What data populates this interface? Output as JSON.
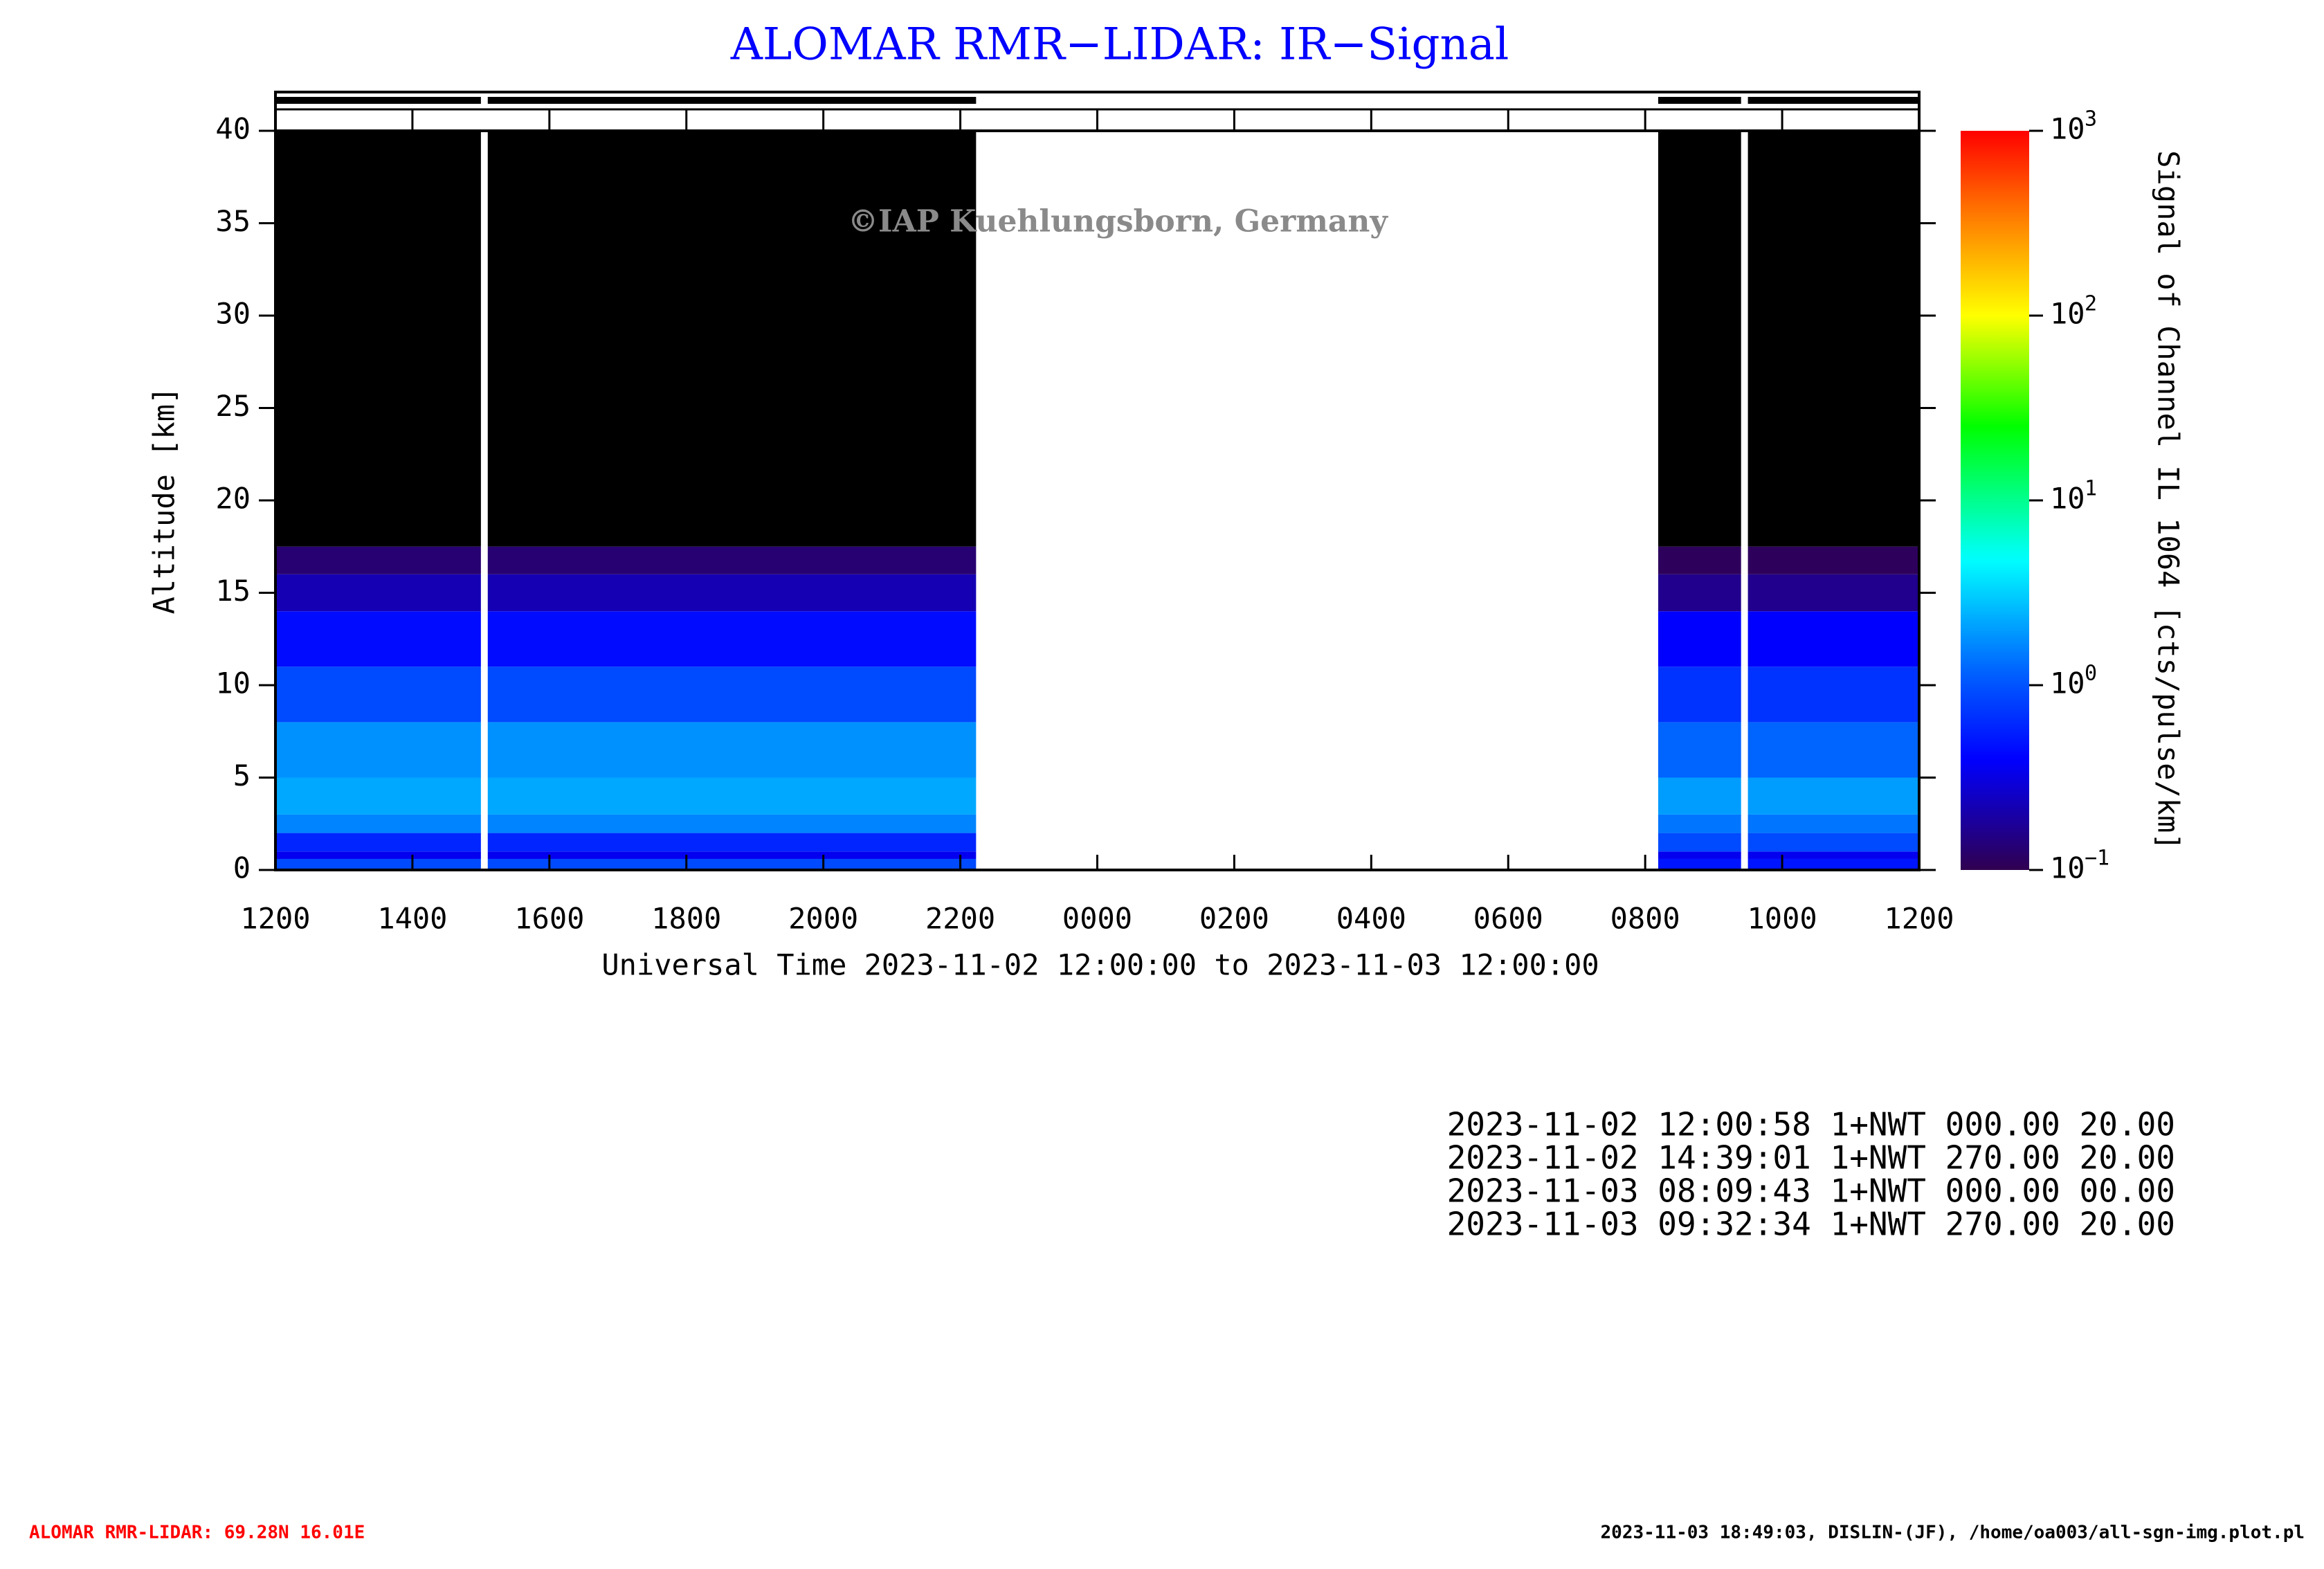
{
  "chart_data": {
    "type": "heatmap",
    "title": "ALOMAR RMR−LIDAR: IR−Signal",
    "watermark": "©IAP Kuehlungsborn, Germany",
    "x_label": "Universal Time 2023-11-02 12:00:00 to 2023-11-03 12:00:00",
    "y_label": "Altitude [km]",
    "colorbar_label": "Signal of Channel IL 1064 [cts/pulse/km]",
    "xlim": [
      12,
      36
    ],
    "xticks": [
      {
        "value": 12,
        "label": "1200"
      },
      {
        "value": 14,
        "label": "1400"
      },
      {
        "value": 16,
        "label": "1600"
      },
      {
        "value": 18,
        "label": "1800"
      },
      {
        "value": 20,
        "label": "2000"
      },
      {
        "value": 22,
        "label": "2200"
      },
      {
        "value": 24,
        "label": "0000"
      },
      {
        "value": 26,
        "label": "0200"
      },
      {
        "value": 28,
        "label": "0400"
      },
      {
        "value": 30,
        "label": "0600"
      },
      {
        "value": 32,
        "label": "0800"
      },
      {
        "value": 34,
        "label": "1000"
      },
      {
        "value": 36,
        "label": "1200"
      }
    ],
    "ylim": [
      0,
      40
    ],
    "yticks": [
      0,
      5,
      10,
      15,
      20,
      25,
      30,
      35,
      40
    ],
    "clim": [
      0.1,
      1000
    ],
    "color_scale": "log",
    "cticks": [
      {
        "value": 0.1,
        "label": "10",
        "exponent": "−1"
      },
      {
        "value": 1,
        "label": "10",
        "exponent": "0"
      },
      {
        "value": 10,
        "label": "10",
        "exponent": "1"
      },
      {
        "value": 100,
        "label": "10",
        "exponent": "2"
      },
      {
        "value": 1000,
        "label": "10",
        "exponent": "3"
      }
    ],
    "altitude_edges": [
      0,
      0.6,
      1,
      2,
      3,
      5,
      8,
      11,
      14,
      16,
      17.5,
      40
    ],
    "windows": [
      {
        "x": [
          12,
          15.0
        ],
        "signal": [
          0.9,
          0.35,
          0.6,
          1.6,
          2.2,
          1.8,
          0.9,
          0.45,
          0.22,
          0.13,
          0.05
        ]
      },
      {
        "x": [
          15.1,
          22.23
        ],
        "signal": [
          0.9,
          0.35,
          0.6,
          1.6,
          2.2,
          1.8,
          0.9,
          0.45,
          0.22,
          0.13,
          0.05
        ]
      },
      {
        "x": [
          32.19,
          33.4
        ],
        "signal": [
          0.5,
          0.35,
          0.9,
          1.4,
          2.0,
          1.2,
          0.7,
          0.4,
          0.16,
          0.11,
          0.05
        ]
      },
      {
        "x": [
          33.5,
          36
        ],
        "signal": [
          0.5,
          0.35,
          0.9,
          1.4,
          2.0,
          1.2,
          0.7,
          0.4,
          0.16,
          0.11,
          0.05
        ]
      }
    ],
    "info_lines": [
      "2023-11-02 12:00:58 1+NWT 000.00 20.00",
      "2023-11-02 14:39:01 1+NWT 270.00 20.00",
      "2023-11-03 08:09:43 1+NWT 000.00 00.00",
      "2023-11-03 09:32:34 1+NWT 270.00 20.00"
    ],
    "footer_left": "ALOMAR RMR-LIDAR: 69.28N 16.01E",
    "footer_right": "2023-11-03 18:49:03, DISLIN-(JF), /home/oa003/all-sgn-img.plot.pl"
  }
}
